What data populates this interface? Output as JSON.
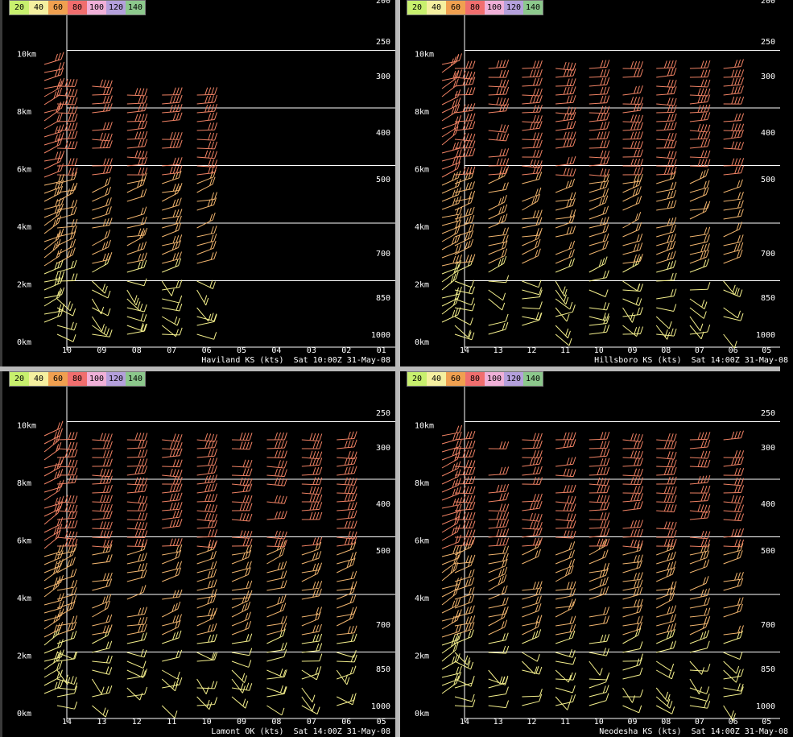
{
  "legend": {
    "labels": [
      "20",
      "40",
      "60",
      "80",
      "100",
      "120",
      "140"
    ],
    "colors": [
      "#c8f06e",
      "#f5f0a0",
      "#f0a050",
      "#f06e6e",
      "#f0b0d8",
      "#b4a0dc",
      "#8cc88c"
    ]
  },
  "colors": {
    "gridline": "#ffffff",
    "label": "#ffffff",
    "barb_low": "#f5f08c",
    "barb_mid": "#f0b46e",
    "barb_high": "#f08264"
  },
  "panels": [
    {
      "footer": "Haviland KS (kts)  Sat 10:00Z 31-May-08",
      "chart_data": {
        "type": "wind-profiler time-height",
        "title": "Haviland KS (kts)",
        "valid_time": "Sat 10:00Z 31-May-08",
        "height_labels": [
          "0km",
          "2km",
          "4km",
          "6km",
          "8km",
          "10km"
        ],
        "pressure_labels": [
          "1000",
          "850",
          "700",
          "500",
          "400",
          "300",
          "250",
          "200"
        ],
        "hour_labels": [
          "10",
          "09",
          "08",
          "07",
          "06",
          "05",
          "04",
          "03",
          "02",
          "01"
        ],
        "hours_with_data": [
          "10",
          "09",
          "08",
          "07",
          "06"
        ]
      }
    },
    {
      "footer": "Hillsboro KS (kts)  Sat 14:00Z 31-May-08",
      "chart_data": {
        "type": "wind-profiler time-height",
        "title": "Hillsboro KS (kts)",
        "valid_time": "Sat 14:00Z 31-May-08",
        "height_labels": [
          "0km",
          "2km",
          "4km",
          "6km",
          "8km",
          "10km"
        ],
        "pressure_labels": [
          "1000",
          "850",
          "700",
          "500",
          "400",
          "300",
          "250",
          "200"
        ],
        "hour_labels": [
          "14",
          "13",
          "12",
          "11",
          "10",
          "09",
          "08",
          "07",
          "06",
          "05"
        ],
        "hours_with_data": [
          "14",
          "13",
          "12",
          "11",
          "10",
          "09",
          "08",
          "07",
          "06"
        ]
      }
    },
    {
      "footer": "Lamont OK (kts)  Sat 14:00Z 31-May-08",
      "chart_data": {
        "type": "wind-profiler time-height",
        "title": "Lamont OK (kts)",
        "valid_time": "Sat 14:00Z 31-May-08",
        "height_labels": [
          "0km",
          "2km",
          "4km",
          "6km",
          "8km",
          "10km"
        ],
        "pressure_labels": [
          "1000",
          "850",
          "700",
          "500",
          "400",
          "300",
          "250"
        ],
        "hour_labels": [
          "14",
          "13",
          "12",
          "11",
          "10",
          "09",
          "08",
          "07",
          "06",
          "05"
        ],
        "hours_with_data": [
          "14",
          "13",
          "12",
          "11",
          "10",
          "09",
          "08",
          "07",
          "06"
        ]
      }
    },
    {
      "footer": "Neodesha KS (kts)  Sat 14:00Z 31-May-08",
      "chart_data": {
        "type": "wind-profiler time-height",
        "title": "Neodesha KS (kts)",
        "valid_time": "Sat 14:00Z 31-May-08",
        "height_labels": [
          "0km",
          "2km",
          "4km",
          "6km",
          "8km",
          "10km"
        ],
        "pressure_labels": [
          "1000",
          "850",
          "700",
          "500",
          "400",
          "300",
          "250"
        ],
        "hour_labels": [
          "14",
          "13",
          "12",
          "11",
          "10",
          "09",
          "08",
          "07",
          "06",
          "05"
        ],
        "hours_with_data": [
          "14",
          "13",
          "12",
          "11",
          "10",
          "09",
          "08",
          "07",
          "06"
        ]
      }
    }
  ]
}
